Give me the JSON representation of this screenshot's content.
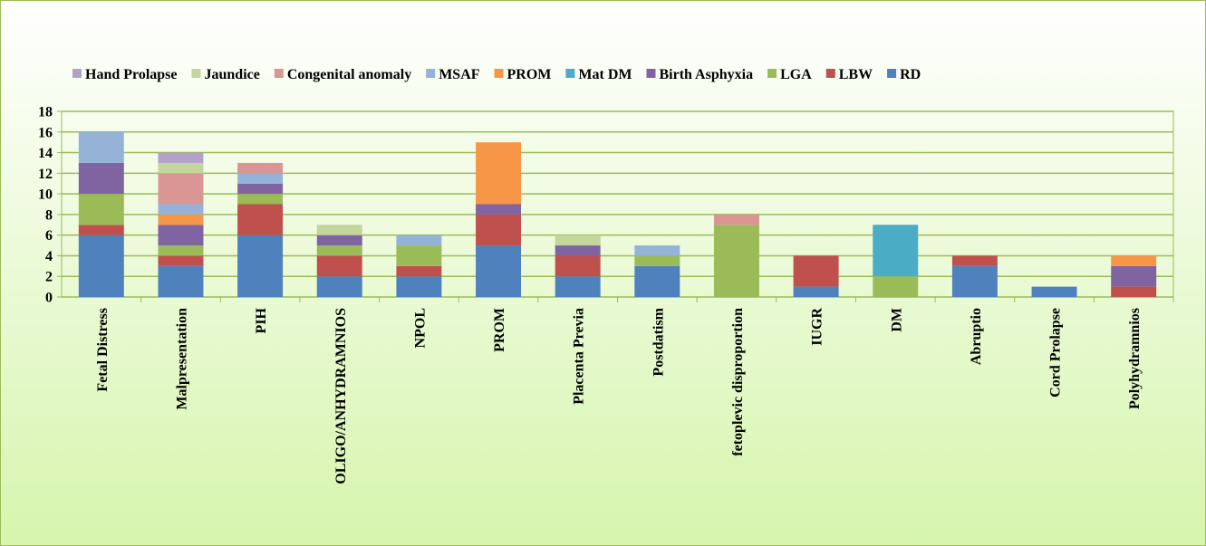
{
  "chart_data": {
    "type": "stacked_bar",
    "categories": [
      "Fetal Distress",
      "Malpresentation",
      "PIH",
      "OLIGO/ANHYDRAMNIOS",
      "NPOL",
      "PROM",
      "Placenta Previa",
      "Postdatism",
      "fetoplevic disproportion",
      "IUGR",
      "DM",
      "Abruptio",
      "Cord Prolapse",
      "Polyhydramnios"
    ],
    "series": [
      {
        "name": "RD",
        "color": "#4f81bd",
        "values": [
          6,
          3,
          6,
          2,
          2,
          5,
          2,
          3,
          0,
          1,
          0,
          3,
          1,
          0
        ]
      },
      {
        "name": "LBW",
        "color": "#c0504d",
        "values": [
          1,
          1,
          3,
          2,
          1,
          3,
          2,
          0,
          0,
          3,
          0,
          1,
          0,
          1
        ]
      },
      {
        "name": "LGA",
        "color": "#9bbb59",
        "values": [
          3,
          1,
          1,
          1,
          2,
          0,
          0,
          1,
          7,
          0,
          2,
          0,
          0,
          0
        ]
      },
      {
        "name": "Birth Asphyxia",
        "color": "#8064a2",
        "values": [
          3,
          2,
          1,
          1,
          0,
          1,
          1,
          0,
          0,
          0,
          0,
          0,
          0,
          2
        ]
      },
      {
        "name": "Mat DM",
        "color": "#4bacc6",
        "values": [
          0,
          0,
          0,
          0,
          0,
          0,
          0,
          0,
          0,
          0,
          5,
          0,
          0,
          0
        ]
      },
      {
        "name": "PROM",
        "color": "#f79646",
        "values": [
          0,
          1,
          0,
          0,
          0,
          6,
          0,
          0,
          0,
          0,
          0,
          0,
          0,
          1
        ]
      },
      {
        "name": "MSAF",
        "color": "#95b3d7",
        "values": [
          3,
          1,
          1,
          0,
          1,
          0,
          0,
          1,
          0,
          0,
          0,
          0,
          0,
          0
        ]
      },
      {
        "name": "Congenital anomaly",
        "color": "#d99694",
        "values": [
          0,
          3,
          1,
          0,
          0,
          0,
          0,
          0,
          1,
          0,
          0,
          0,
          0,
          0
        ]
      },
      {
        "name": "Jaundice",
        "color": "#c3d69b",
        "values": [
          0,
          1,
          0,
          1,
          0,
          0,
          1,
          0,
          0,
          0,
          0,
          0,
          0,
          0
        ]
      },
      {
        "name": "Hand Prolapse",
        "color": "#b3a2c7",
        "values": [
          0,
          1,
          0,
          0,
          0,
          0,
          0,
          0,
          0,
          0,
          0,
          0,
          0,
          0
        ]
      }
    ],
    "ylim": [
      0,
      18
    ],
    "yticks": [
      0,
      2,
      4,
      6,
      8,
      10,
      12,
      14,
      16,
      18
    ],
    "grid": true,
    "legend": "top"
  }
}
